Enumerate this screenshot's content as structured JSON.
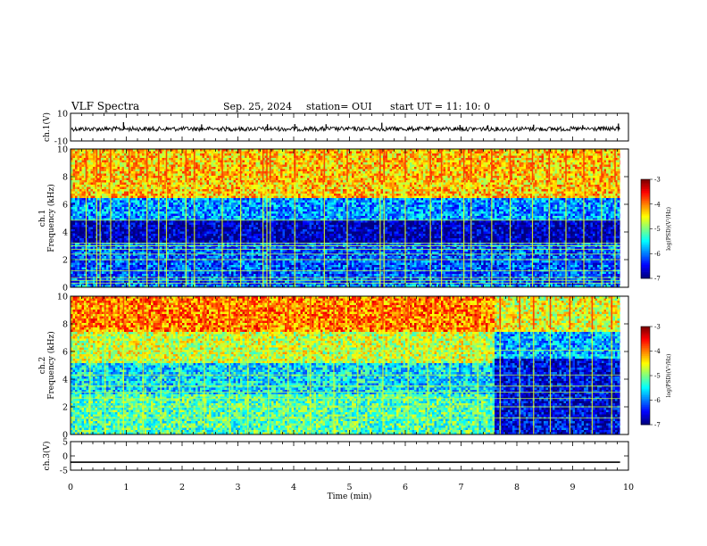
{
  "header": {
    "title": "VLF  Spectra",
    "date": "Sep. 25, 2024",
    "station": "station= OUI",
    "start": "start  UT =   11: 10: 0"
  },
  "chart_data": [
    {
      "type": "line",
      "id": "ch1-waveform",
      "ylabel": "ch.1(V)",
      "ylim": [
        -10,
        10
      ],
      "yticks": [
        "10",
        "-10"
      ],
      "xlim": [
        0,
        10
      ],
      "baseline": 0,
      "spikes": [
        {
          "x": 0.95,
          "y": 3.6
        },
        {
          "x": 1.48,
          "y": -2.6
        },
        {
          "x": 1.72,
          "y": -1.6
        },
        {
          "x": 2.35,
          "y": 2.0
        },
        {
          "x": 3.52,
          "y": -2.3
        },
        {
          "x": 3.53,
          "y": 2.1
        },
        {
          "x": 4.02,
          "y": 2.2
        },
        {
          "x": 4.58,
          "y": 2.1
        },
        {
          "x": 5.58,
          "y": 3.2
        },
        {
          "x": 6.05,
          "y": -1.9
        },
        {
          "x": 6.98,
          "y": 1.6
        },
        {
          "x": 7.48,
          "y": 1.4
        },
        {
          "x": 8.3,
          "y": 1.8
        },
        {
          "x": 9.18,
          "y": 1.4
        },
        {
          "x": 9.82,
          "y": 2.6
        }
      ]
    },
    {
      "type": "heatmap",
      "id": "ch1-spectrogram",
      "ylabel": "ch.1\nFrequency  (kHz)",
      "ylim": [
        0,
        10
      ],
      "yticks": [
        "0",
        "2",
        "4",
        "6",
        "8",
        "10"
      ],
      "xlim": [
        0,
        10
      ],
      "data_end_min": 9.85,
      "colorbar": {
        "label": "log(PSD)(V²/Hz)",
        "range": [
          -7,
          -3
        ],
        "ticks": [
          "-3",
          "-4",
          "-5",
          "-6",
          "-7"
        ]
      },
      "bands": [
        {
          "from_khz": 6.5,
          "to_khz": 10,
          "level": -4.3
        },
        {
          "from_khz": 5.0,
          "to_khz": 6.5,
          "level": -5.9
        },
        {
          "from_khz": 3.3,
          "to_khz": 5.0,
          "level": -6.8
        },
        {
          "from_khz": 0.2,
          "to_khz": 3.3,
          "level": -6.2
        },
        {
          "from_khz": 0.0,
          "to_khz": 0.2,
          "level": -5.8
        }
      ],
      "tones_khz": [
        0.3,
        0.5,
        0.7,
        1.2,
        2.0,
        2.4,
        2.75,
        3.0,
        3.2,
        4.85
      ],
      "events_min": [
        0.28,
        0.47,
        0.53,
        0.72,
        1.05,
        1.37,
        1.58,
        1.72,
        2.07,
        2.22,
        2.72,
        3.05,
        3.45,
        3.52,
        3.58,
        4.02,
        4.55,
        4.96,
        5.55,
        5.62,
        6.0,
        6.45,
        6.65,
        7.05,
        7.18,
        7.55,
        7.88,
        8.28,
        8.58,
        8.88,
        9.2,
        9.52,
        9.76
      ]
    },
    {
      "type": "heatmap",
      "id": "ch2-spectrogram",
      "ylabel": "ch.2\nFrequency  (kHz)",
      "ylim": [
        0,
        10
      ],
      "yticks": [
        "0",
        "2",
        "4",
        "6",
        "8",
        "10"
      ],
      "xlim": [
        0,
        10
      ],
      "data_end_min": 9.85,
      "colorbar": {
        "label": "log(PSD)(V²/Hz)",
        "range": [
          -7,
          -3
        ],
        "ticks": [
          "-3",
          "-4",
          "-5",
          "-6",
          "-7"
        ]
      },
      "transition_min": 7.6,
      "bands_before": [
        {
          "from_khz": 7.5,
          "to_khz": 10,
          "level": -4.0
        },
        {
          "from_khz": 5.3,
          "to_khz": 7.5,
          "level": -4.7
        },
        {
          "from_khz": 3.0,
          "to_khz": 5.3,
          "level": -5.6
        },
        {
          "from_khz": 0.0,
          "to_khz": 3.0,
          "level": -5.2
        }
      ],
      "bands_after": [
        {
          "from_khz": 7.5,
          "to_khz": 10,
          "level": -4.6
        },
        {
          "from_khz": 5.5,
          "to_khz": 7.5,
          "level": -5.8
        },
        {
          "from_khz": 0.0,
          "to_khz": 5.5,
          "level": -6.6
        }
      ],
      "tones_khz": [
        1.2,
        2.0,
        2.6,
        3.05,
        3.5,
        4.3,
        6.1
      ],
      "events_min": [
        0.35,
        0.62,
        0.95,
        1.3,
        1.62,
        1.95,
        2.4,
        2.85,
        3.18,
        3.55,
        3.9,
        4.3,
        4.72,
        5.15,
        5.6,
        6.05,
        6.4,
        6.8,
        7.3,
        7.7,
        8.05,
        8.3,
        8.6,
        8.95,
        9.35,
        9.7
      ]
    },
    {
      "type": "line",
      "id": "ch3-waveform",
      "ylabel": "ch.3(V)",
      "ylim": [
        -5,
        5
      ],
      "yticks": [
        "5",
        "0",
        "-5"
      ],
      "xlim": [
        0,
        10
      ],
      "level": -2.2,
      "xlabel": "Time  (min)",
      "xticks": [
        "0",
        "1",
        "2",
        "3",
        "4",
        "5",
        "6",
        "7",
        "8",
        "9",
        "10"
      ]
    }
  ]
}
